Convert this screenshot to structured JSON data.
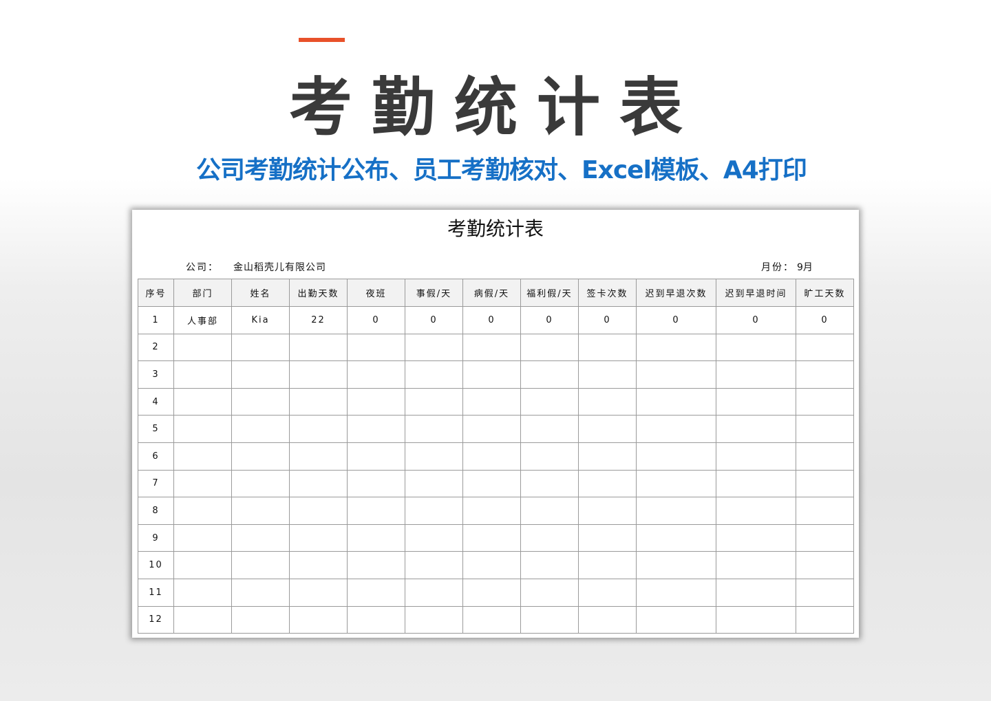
{
  "header": {
    "title": "考勤统计表",
    "subtitle": "公司考勤统计公布、员工考勤核对、Excel模板、A4打印",
    "accent_color": "#e8512a",
    "subtitle_color": "#1670c6"
  },
  "sheet": {
    "title": "考勤统计表",
    "company_label": "公司：",
    "company_value": "金山稻壳儿有限公司",
    "month_label": "月份：",
    "month_value": "9月",
    "columns": [
      "序号",
      "部门",
      "姓名",
      "出勤天数",
      "夜班",
      "事假/天",
      "病假/天",
      "福利假/天",
      "签卡次数",
      "迟到早退次数",
      "迟到早退时间",
      "旷工天数"
    ],
    "rows": [
      [
        "1",
        "人事部",
        "Kia",
        "22",
        "0",
        "0",
        "0",
        "0",
        "0",
        "0",
        "0",
        "0"
      ],
      [
        "2",
        "",
        "",
        "",
        "",
        "",
        "",
        "",
        "",
        "",
        "",
        ""
      ],
      [
        "3",
        "",
        "",
        "",
        "",
        "",
        "",
        "",
        "",
        "",
        "",
        ""
      ],
      [
        "4",
        "",
        "",
        "",
        "",
        "",
        "",
        "",
        "",
        "",
        "",
        ""
      ],
      [
        "5",
        "",
        "",
        "",
        "",
        "",
        "",
        "",
        "",
        "",
        "",
        ""
      ],
      [
        "6",
        "",
        "",
        "",
        "",
        "",
        "",
        "",
        "",
        "",
        "",
        ""
      ],
      [
        "7",
        "",
        "",
        "",
        "",
        "",
        "",
        "",
        "",
        "",
        "",
        ""
      ],
      [
        "8",
        "",
        "",
        "",
        "",
        "",
        "",
        "",
        "",
        "",
        "",
        ""
      ],
      [
        "9",
        "",
        "",
        "",
        "",
        "",
        "",
        "",
        "",
        "",
        "",
        ""
      ],
      [
        "10",
        "",
        "",
        "",
        "",
        "",
        "",
        "",
        "",
        "",
        "",
        ""
      ],
      [
        "11",
        "",
        "",
        "",
        "",
        "",
        "",
        "",
        "",
        "",
        "",
        ""
      ],
      [
        "12",
        "",
        "",
        "",
        "",
        "",
        "",
        "",
        "",
        "",
        "",
        ""
      ]
    ]
  }
}
